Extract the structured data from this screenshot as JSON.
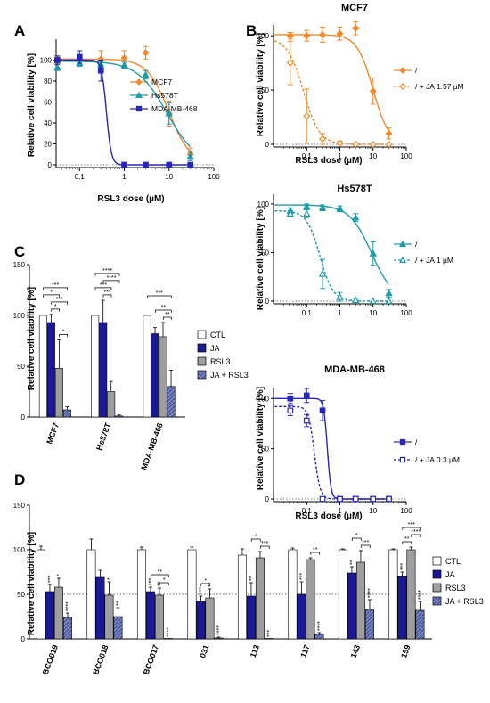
{
  "chart_data": [
    {
      "panel": "A",
      "type": "line",
      "title": "",
      "xlabel": "RSL3 dose (µM)",
      "ylabel": "Relative cell viability [%]",
      "xscale": "log",
      "xlim": [
        0.03,
        100
      ],
      "ylim": [
        0,
        120
      ],
      "xticks": [
        0.1,
        1,
        10,
        100
      ],
      "xtick_labels": [
        "0.1",
        "1",
        "10",
        "100"
      ],
      "yticks": [
        0,
        20,
        40,
        60,
        80,
        100
      ],
      "reference_line_y": 0,
      "legend": "right",
      "series": [
        {
          "name": "MCF7",
          "color": "#f08a2c",
          "marker": "diamond",
          "x": [
            0.032,
            0.1,
            0.3,
            1,
            3,
            10,
            30
          ],
          "y": [
            100,
            100,
            101,
            102,
            107,
            49,
            10
          ],
          "err": [
            3,
            4,
            8,
            7,
            6,
            12,
            6
          ],
          "fit": {
            "top": 101,
            "bottom": 0,
            "ec50": 10,
            "hill": 1.8
          }
        },
        {
          "name": "Hs578T",
          "color": "#1e9aa8",
          "marker": "triangle",
          "x": [
            0.032,
            0.1,
            0.3,
            1,
            3,
            10,
            30
          ],
          "y": [
            93,
            97,
            96,
            95,
            86,
            49,
            8
          ],
          "err": [
            3,
            3,
            3,
            3,
            4,
            10,
            4
          ],
          "fit": {
            "top": 99,
            "bottom": 0,
            "ec50": 9,
            "hill": 1.3
          }
        },
        {
          "name": "MDA-MB-468",
          "color": "#2626b8",
          "marker": "square",
          "x": [
            0.032,
            0.1,
            0.3,
            1,
            3,
            10,
            30
          ],
          "y": [
            100,
            103,
            90,
            0,
            0,
            0,
            0
          ],
          "err": [
            4,
            6,
            10,
            0,
            0,
            0,
            0
          ],
          "fit": {
            "top": 100,
            "bottom": 0,
            "ec50": 0.4,
            "hill": 8
          }
        }
      ]
    },
    {
      "panel": "B",
      "type": "line",
      "title": "MCF7",
      "xlabel": "RSL3 dose (µM)",
      "ylabel": "Relative cell viability [%]",
      "xscale": "log",
      "xlim": [
        0.01,
        100
      ],
      "ylim": [
        0,
        110
      ],
      "xticks": [
        0.1,
        1,
        10,
        100
      ],
      "xtick_labels": [
        "0.1",
        "1",
        "10",
        "100"
      ],
      "yticks": [
        0,
        50,
        100
      ],
      "reference_line_y": 0,
      "legend": "right",
      "series": [
        {
          "name": "/",
          "color": "#f08a2c",
          "marker": "diamond",
          "dashed": false,
          "filled": true,
          "x": [
            0.032,
            0.1,
            0.3,
            1,
            3,
            10,
            30
          ],
          "y": [
            100,
            100,
            101,
            102,
            107,
            49,
            10
          ],
          "err": [
            3,
            5,
            7,
            6,
            6,
            12,
            5
          ],
          "fit": {
            "top": 101,
            "bottom": 0,
            "ec50": 10,
            "hill": 1.8
          }
        },
        {
          "name": "/ + JA 1.57 µM",
          "color": "#f08a2c",
          "marker": "diamond",
          "dashed": true,
          "filled": false,
          "x": [
            0.032,
            0.1,
            0.3,
            1,
            3,
            10,
            30
          ],
          "y": [
            75,
            26,
            5,
            1,
            0,
            0,
            0
          ],
          "err": [
            20,
            25,
            5,
            2,
            1,
            0,
            0
          ],
          "fit": {
            "top": 98,
            "bottom": 0,
            "ec50": 0.08,
            "hill": 1.8
          }
        }
      ]
    },
    {
      "panel": "B",
      "type": "line",
      "title": "Hs578T",
      "xlabel": "",
      "ylabel": "Relative cell viability [%]",
      "xscale": "log",
      "xlim": [
        0.01,
        100
      ],
      "ylim": [
        0,
        110
      ],
      "xticks": [
        0.1,
        1,
        10,
        100
      ],
      "xtick_labels": [
        "0.1",
        "1",
        "10",
        "100"
      ],
      "yticks": [
        0,
        50,
        100
      ],
      "reference_line_y": 0,
      "legend": "right",
      "series": [
        {
          "name": "/",
          "color": "#1e9aa8",
          "marker": "triangle",
          "dashed": false,
          "filled": true,
          "x": [
            0.032,
            0.1,
            0.3,
            1,
            3,
            10,
            30
          ],
          "y": [
            93,
            97,
            96,
            95,
            86,
            49,
            8
          ],
          "err": [
            3,
            3,
            3,
            3,
            4,
            12,
            4
          ],
          "fit": {
            "top": 99,
            "bottom": 0,
            "ec50": 9,
            "hill": 1.3
          }
        },
        {
          "name": "/ + JA 1 µM",
          "color": "#1e9aa8",
          "marker": "triangle",
          "dashed": true,
          "filled": false,
          "x": [
            0.032,
            0.1,
            0.3,
            1,
            3,
            10,
            30
          ],
          "y": [
            90,
            90,
            28,
            4,
            1,
            0,
            0
          ],
          "err": [
            3,
            4,
            15,
            5,
            2,
            0,
            0
          ],
          "fit": {
            "top": 93,
            "bottom": 0,
            "ec50": 0.25,
            "hill": 2.2
          }
        }
      ]
    },
    {
      "panel": "B",
      "type": "line",
      "title": "MDA-MB-468",
      "xlabel": "RSL3 dose (µM)",
      "ylabel": "Relative cell viability [%]",
      "xscale": "log",
      "xlim": [
        0.01,
        100
      ],
      "ylim": [
        0,
        110
      ],
      "xticks": [
        0.1,
        1,
        10,
        100
      ],
      "xtick_labels": [
        "0.1",
        "1",
        "10",
        "100"
      ],
      "yticks": [
        0,
        50,
        100
      ],
      "reference_line_y": 0,
      "legend": "right",
      "series": [
        {
          "name": "/",
          "color": "#2626b8",
          "marker": "square",
          "dashed": false,
          "filled": true,
          "x": [
            0.032,
            0.1,
            0.3,
            1,
            3,
            10,
            30
          ],
          "y": [
            100,
            103,
            88,
            0,
            0,
            0,
            0
          ],
          "err": [
            5,
            7,
            10,
            0,
            0,
            0,
            0
          ],
          "fit": {
            "top": 100,
            "bottom": 0,
            "ec50": 0.42,
            "hill": 8
          }
        },
        {
          "name": "/ + JA 0.3 µM",
          "color": "#2626b8",
          "marker": "square",
          "dashed": true,
          "filled": false,
          "x": [
            0.032,
            0.1,
            0.3,
            1,
            3,
            10,
            30
          ],
          "y": [
            88,
            78,
            0,
            0,
            0,
            0,
            0
          ],
          "err": [
            5,
            6,
            0,
            0,
            0,
            0,
            0
          ],
          "fit": {
            "top": 92,
            "bottom": 0,
            "ec50": 0.17,
            "hill": 5
          }
        }
      ]
    },
    {
      "panel": "C",
      "type": "bar",
      "title": "",
      "xlabel": "",
      "ylabel": "Relative cell viability [%]",
      "ylim": [
        0,
        150
      ],
      "yticks": [
        0,
        50,
        100,
        150
      ],
      "legend": "right",
      "categories": [
        "MCF7",
        "Hs578T",
        "MDA-MB-468"
      ],
      "series": [
        {
          "name": "CTL",
          "color": "#ffffff",
          "values": [
            100,
            100,
            100
          ],
          "err": [
            0,
            0,
            0
          ]
        },
        {
          "name": "JA",
          "color": "#1a1a96",
          "values": [
            93,
            93,
            82
          ],
          "err": [
            8,
            22,
            6
          ]
        },
        {
          "name": "RSL3",
          "color": "#9e9e9e",
          "values": [
            48,
            25,
            79
          ],
          "err": [
            28,
            10,
            14
          ]
        },
        {
          "name": "JA + RSL3",
          "color": "#5060a8",
          "hatched": true,
          "values": [
            7,
            1,
            30
          ],
          "err": [
            3,
            1,
            16
          ]
        }
      ],
      "brackets": [
        {
          "category": 0,
          "from": 0,
          "to": 3,
          "level": 3,
          "text": "***"
        },
        {
          "category": 0,
          "from": 0,
          "to": 2,
          "level": 2,
          "text": "*"
        },
        {
          "category": 0,
          "from": 1,
          "to": 3,
          "level": 1,
          "text": "***"
        },
        {
          "category": 0,
          "from": 1,
          "to": 2,
          "level": 0,
          "text": "*"
        },
        {
          "category": 0,
          "from": 2,
          "to": 3,
          "level": 0,
          "text": "*"
        },
        {
          "category": 1,
          "from": 0,
          "to": 3,
          "level": 3,
          "text": "****"
        },
        {
          "category": 1,
          "from": 1,
          "to": 3,
          "level": 2,
          "text": "****"
        },
        {
          "category": 1,
          "from": 0,
          "to": 2,
          "level": 1,
          "text": "***"
        },
        {
          "category": 1,
          "from": 1,
          "to": 2,
          "level": 0,
          "text": "***"
        },
        {
          "category": 2,
          "from": 0,
          "to": 3,
          "level": 2,
          "text": "***"
        },
        {
          "category": 2,
          "from": 1,
          "to": 3,
          "level": 1,
          "text": "**"
        },
        {
          "category": 2,
          "from": 2,
          "to": 3,
          "level": 0,
          "text": "**"
        }
      ]
    },
    {
      "panel": "D",
      "type": "bar",
      "title": "",
      "xlabel": "",
      "ylabel": "Relative cell viability [%]",
      "ylim": [
        0,
        150
      ],
      "yticks": [
        0,
        50,
        100,
        150
      ],
      "reference_line_y": 50,
      "legend": "right",
      "categories": [
        "BCO019",
        "BCO018",
        "BCO017",
        "031",
        "113",
        "117",
        "143",
        "159"
      ],
      "series": [
        {
          "name": "CTL",
          "color": "#ffffff",
          "values": [
            100,
            100,
            100,
            100,
            94,
            100,
            100,
            100
          ],
          "err": [
            4,
            12,
            3,
            3,
            7,
            2,
            1,
            1
          ]
        },
        {
          "name": "JA",
          "color": "#1a1a96",
          "values": [
            53,
            69,
            53,
            42,
            48,
            50,
            74,
            70
          ],
          "err": [
            8,
            8,
            5,
            6,
            15,
            14,
            7,
            5
          ]
        },
        {
          "name": "RSL3",
          "color": "#9e9e9e",
          "values": [
            58,
            49,
            49,
            46,
            91,
            89,
            86,
            100
          ],
          "err": [
            10,
            15,
            8,
            10,
            7,
            2,
            13,
            3
          ]
        },
        {
          "name": "JA + RSL3",
          "color": "#5060a8",
          "hatched": true,
          "values": [
            24,
            25,
            0,
            1,
            0,
            5,
            33,
            32
          ],
          "err": [
            5,
            10,
            0,
            1,
            0,
            2,
            11,
            10
          ]
        }
      ],
      "bar_stars": [
        {
          "category": 0,
          "bar": 1,
          "text": "***"
        },
        {
          "category": 0,
          "bar": 2,
          "text": "*"
        },
        {
          "category": 0,
          "bar": 3,
          "text": "****"
        },
        {
          "category": 1,
          "bar": 2,
          "text": "*"
        },
        {
          "category": 1,
          "bar": 3,
          "text": "**"
        },
        {
          "category": 2,
          "bar": 1,
          "text": "***"
        },
        {
          "category": 2,
          "bar": 2,
          "text": "**"
        },
        {
          "category": 2,
          "bar": 3,
          "text": "****"
        },
        {
          "category": 3,
          "bar": 1,
          "text": "***"
        },
        {
          "category": 3,
          "bar": 2,
          "text": "**"
        },
        {
          "category": 3,
          "bar": 3,
          "text": "****"
        },
        {
          "category": 4,
          "bar": 1,
          "text": "**"
        },
        {
          "category": 4,
          "bar": 3,
          "text": "***"
        },
        {
          "category": 5,
          "bar": 1,
          "text": "***"
        },
        {
          "category": 5,
          "bar": 3,
          "text": "****"
        },
        {
          "category": 6,
          "bar": 1,
          "text": "**"
        },
        {
          "category": 6,
          "bar": 3,
          "text": "****"
        },
        {
          "category": 7,
          "bar": 1,
          "text": "***"
        },
        {
          "category": 7,
          "bar": 3,
          "text": "****"
        }
      ],
      "brackets": [
        {
          "category": 2,
          "from": 1,
          "to": 3,
          "level": 1,
          "text": "**"
        },
        {
          "category": 2,
          "from": 2,
          "to": 3,
          "level": 0,
          "text": "*"
        },
        {
          "category": 3,
          "from": 1,
          "to": 2,
          "level": 0,
          "text": "*"
        },
        {
          "category": 4,
          "from": 1,
          "to": 2,
          "level": 1,
          "text": "*"
        },
        {
          "category": 4,
          "from": 2,
          "to": 3,
          "level": 0,
          "text": "***"
        },
        {
          "category": 5,
          "from": 2,
          "to": 3,
          "level": 0,
          "text": "**"
        },
        {
          "category": 6,
          "from": 1,
          "to": 2,
          "level": 1,
          "text": "*"
        },
        {
          "category": 6,
          "from": 2,
          "to": 3,
          "level": 0,
          "text": "***"
        },
        {
          "category": 7,
          "from": 1,
          "to": 3,
          "level": 2,
          "text": "***"
        },
        {
          "category": 7,
          "from": 2,
          "to": 3,
          "level": 1,
          "text": "****"
        },
        {
          "category": 7,
          "from": 1,
          "to": 2,
          "level": 0,
          "text": "**"
        }
      ]
    }
  ]
}
